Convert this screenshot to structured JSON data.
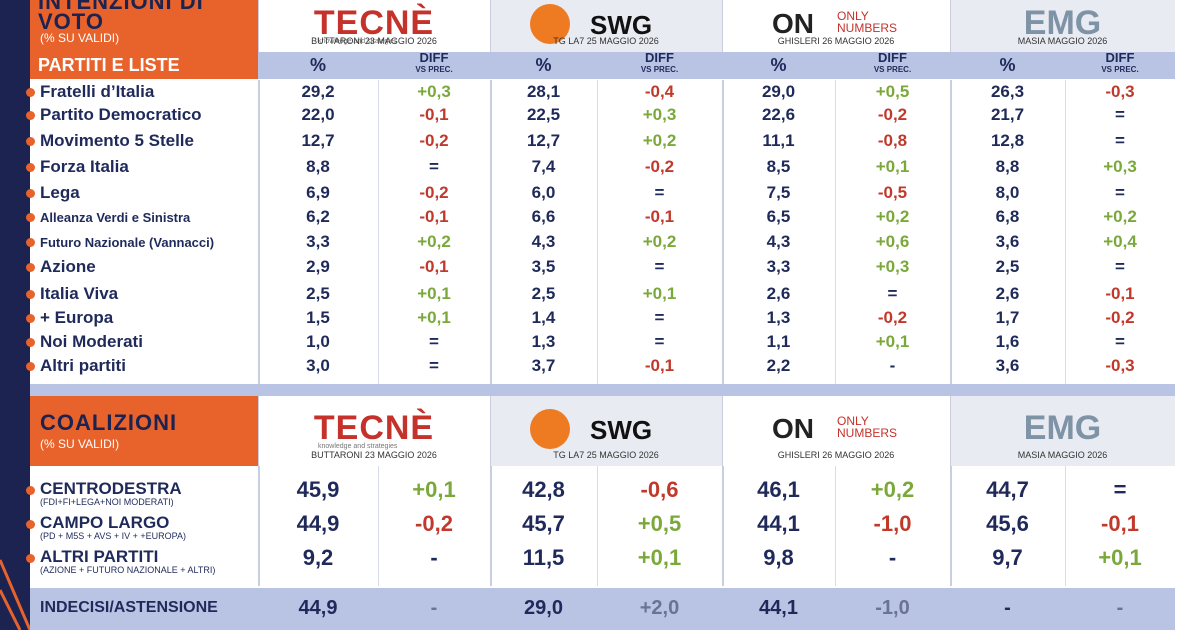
{
  "header": {
    "title": "INTENZIONI DI VOTO",
    "subtitle": "(% SU VALIDI)"
  },
  "pollsters": [
    {
      "logo": "TECNÈ",
      "logo_sub": "knowledge and strategies",
      "credit": "BUTTARONI 23 MAGGIO 2026"
    },
    {
      "logo": "SWG",
      "credit": "TG LA7 25 MAGGIO 2026"
    },
    {
      "logo": "ON",
      "logo_sub": "ONLY NUMBERS",
      "credit": "GHISLERI 26 MAGGIO 2026"
    },
    {
      "logo": "EMG",
      "credit": "MASIA MAGGIO 2026"
    }
  ],
  "parties": {
    "label": "PARTITI E LISTE",
    "col_pct": "%",
    "col_diff": "DIFF",
    "col_diff_sub": "VS PREC.",
    "rows": [
      {
        "name": "Fratelli d’Italia",
        "cells": [
          "29,2",
          "+0,3",
          "28,1",
          "-0,4",
          "29,0",
          "+0,5",
          "26,3",
          "-0,3"
        ]
      },
      {
        "name": "Partito Democratico",
        "cells": [
          "22,0",
          "-0,1",
          "22,5",
          "+0,3",
          "22,6",
          "-0,2",
          "21,7",
          "="
        ]
      },
      {
        "name": "Movimento 5 Stelle",
        "cells": [
          "12,7",
          "-0,2",
          "12,7",
          "+0,2",
          "11,1",
          "-0,8",
          "12,8",
          "="
        ]
      },
      {
        "name": "Forza Italia",
        "cells": [
          "8,8",
          "=",
          "7,4",
          "-0,2",
          "8,5",
          "+0,1",
          "8,8",
          "+0,3"
        ]
      },
      {
        "name": "Lega",
        "cells": [
          "6,9",
          "-0,2",
          "6,0",
          "=",
          "7,5",
          "-0,5",
          "8,0",
          "="
        ]
      },
      {
        "name": "Alleanza Verdi e Sinistra",
        "cells": [
          "6,2",
          "-0,1",
          "6,6",
          "-0,1",
          "6,5",
          "+0,2",
          "6,8",
          "+0,2"
        ]
      },
      {
        "name": "Futuro Nazionale (Vannacci)",
        "cells": [
          "3,3",
          "+0,2",
          "4,3",
          "+0,2",
          "4,3",
          "+0,6",
          "3,6",
          "+0,4"
        ]
      },
      {
        "name": "Azione",
        "cells": [
          "2,9",
          "-0,1",
          "3,5",
          "=",
          "3,3",
          "+0,3",
          "2,5",
          "="
        ]
      },
      {
        "name": "Italia Viva",
        "cells": [
          "2,5",
          "+0,1",
          "2,5",
          "+0,1",
          "2,6",
          "=",
          "2,6",
          "-0,1"
        ]
      },
      {
        "name": "+ Europa",
        "cells": [
          "1,5",
          "+0,1",
          "1,4",
          "=",
          "1,3",
          "-0,2",
          "1,7",
          "-0,2"
        ]
      },
      {
        "name": "Noi Moderati",
        "cells": [
          "1,0",
          "=",
          "1,3",
          "=",
          "1,1",
          "+0,1",
          "1,6",
          "="
        ]
      },
      {
        "name": "Altri partiti",
        "cells": [
          "3,0",
          "=",
          "3,7",
          "-0,1",
          "2,2",
          "-",
          "3,6",
          "-0,3"
        ]
      }
    ]
  },
  "coalitions": {
    "title": "COALIZIONI",
    "subtitle": "(% SU VALIDI)",
    "rows": [
      {
        "name": "CENTRODESTRA",
        "detail": "(FDI+FI+LEGA+NOI MODERATI)",
        "cells": [
          "45,9",
          "+0,1",
          "42,8",
          "-0,6",
          "46,1",
          "+0,2",
          "44,7",
          "="
        ]
      },
      {
        "name": "CAMPO LARGO",
        "detail": "(PD + M5S + AVS + IV + +EUROPA)",
        "cells": [
          "44,9",
          "-0,2",
          "45,7",
          "+0,5",
          "44,1",
          "-1,0",
          "45,6",
          "-0,1"
        ]
      },
      {
        "name": "ALTRI PARTITI",
        "detail": "(AZIONE + FUTURO NAZIONALE + ALTRI)",
        "cells": [
          "9,2",
          "-",
          "11,5",
          "+0,1",
          "9,8",
          "-",
          "9,7",
          "+0,1"
        ]
      }
    ]
  },
  "undecided": {
    "name": "INDECISI/ASTENSIONE",
    "cells": [
      "44,9",
      "-",
      "29,0",
      "+2,0",
      "44,1",
      "-1,0",
      "-",
      "-"
    ]
  }
}
